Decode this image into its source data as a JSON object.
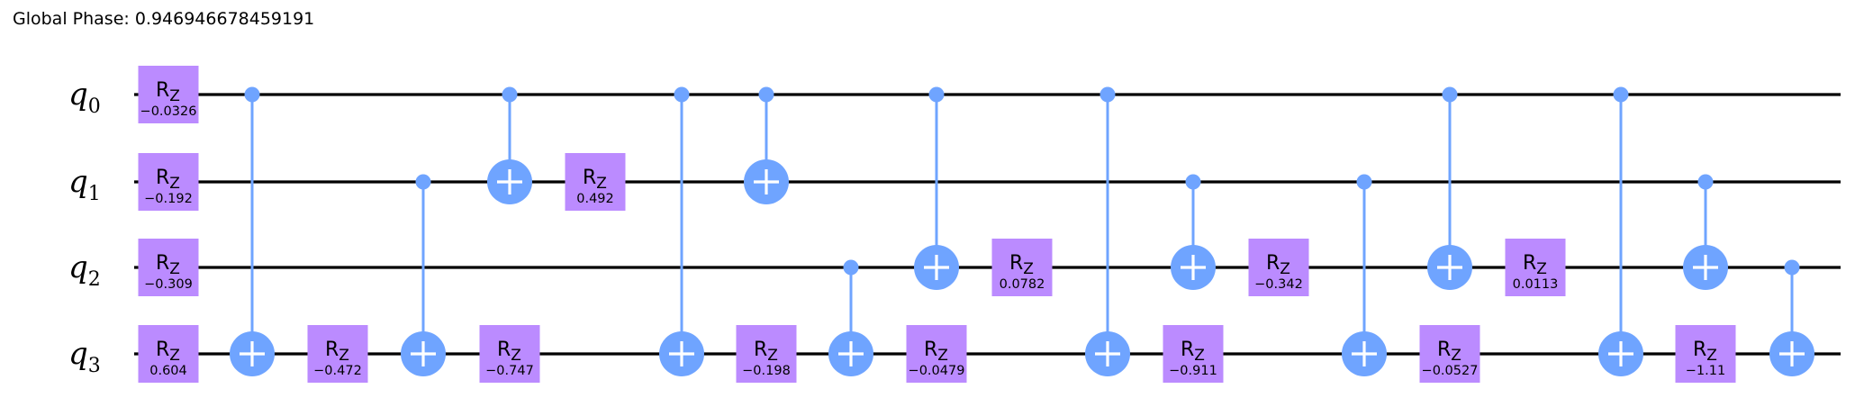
{
  "global_phase": "Global Phase: 0.946946678459191",
  "qubits": [
    {
      "name": "q",
      "index": "0"
    },
    {
      "name": "q",
      "index": "1"
    },
    {
      "name": "q",
      "index": "2"
    },
    {
      "name": "q",
      "index": "3"
    }
  ],
  "gates": [
    {
      "type": "rz",
      "qubit": 0,
      "param": "−0.0326",
      "col": 0
    },
    {
      "type": "rz",
      "qubit": 1,
      "param": "−0.192",
      "col": 0
    },
    {
      "type": "rz",
      "qubit": 2,
      "param": "−0.309",
      "col": 0
    },
    {
      "type": "rz",
      "qubit": 3,
      "param": "0.604",
      "col": 0
    },
    {
      "type": "cx",
      "control": 0,
      "target": 3,
      "col": 1
    },
    {
      "type": "rz",
      "qubit": 3,
      "param": "−0.472",
      "col": 2
    },
    {
      "type": "cx",
      "control": 1,
      "target": 3,
      "col": 3
    },
    {
      "type": "cx",
      "control": 0,
      "target": 1,
      "col": 4
    },
    {
      "type": "rz",
      "qubit": 3,
      "param": "−0.747",
      "col": 4
    },
    {
      "type": "rz",
      "qubit": 1,
      "param": "0.492",
      "col": 5
    },
    {
      "type": "cx",
      "control": 0,
      "target": 3,
      "col": 6
    },
    {
      "type": "cx",
      "control": 0,
      "target": 1,
      "col": 7
    },
    {
      "type": "rz",
      "qubit": 3,
      "param": "−0.198",
      "col": 7
    },
    {
      "type": "cx",
      "control": 2,
      "target": 3,
      "col": 8
    },
    {
      "type": "cx",
      "control": 0,
      "target": 2,
      "col": 9
    },
    {
      "type": "rz",
      "qubit": 3,
      "param": "−0.0479",
      "col": 9
    },
    {
      "type": "rz",
      "qubit": 2,
      "param": "0.0782",
      "col": 10
    },
    {
      "type": "cx",
      "control": 0,
      "target": 3,
      "col": 11
    },
    {
      "type": "cx",
      "control": 1,
      "target": 2,
      "col": 12
    },
    {
      "type": "rz",
      "qubit": 3,
      "param": "−0.911",
      "col": 12
    },
    {
      "type": "rz",
      "qubit": 2,
      "param": "−0.342",
      "col": 13
    },
    {
      "type": "cx",
      "control": 1,
      "target": 3,
      "col": 14
    },
    {
      "type": "cx",
      "control": 0,
      "target": 2,
      "col": 15
    },
    {
      "type": "rz",
      "qubit": 3,
      "param": "−0.0527",
      "col": 15
    },
    {
      "type": "rz",
      "qubit": 2,
      "param": "0.0113",
      "col": 16
    },
    {
      "type": "cx",
      "control": 0,
      "target": 3,
      "col": 17
    },
    {
      "type": "cx",
      "control": 1,
      "target": 2,
      "col": 18
    },
    {
      "type": "rz",
      "qubit": 3,
      "param": "−1.11",
      "col": 18
    },
    {
      "type": "cx",
      "control": 2,
      "target": 3,
      "col": 19
    }
  ],
  "gate_label": "R",
  "gate_label_sub": "Z",
  "colors": {
    "wire": "#000000",
    "cx": "#6fa4ff",
    "rz": "#bb8bff",
    "background": "#ffffff"
  }
}
